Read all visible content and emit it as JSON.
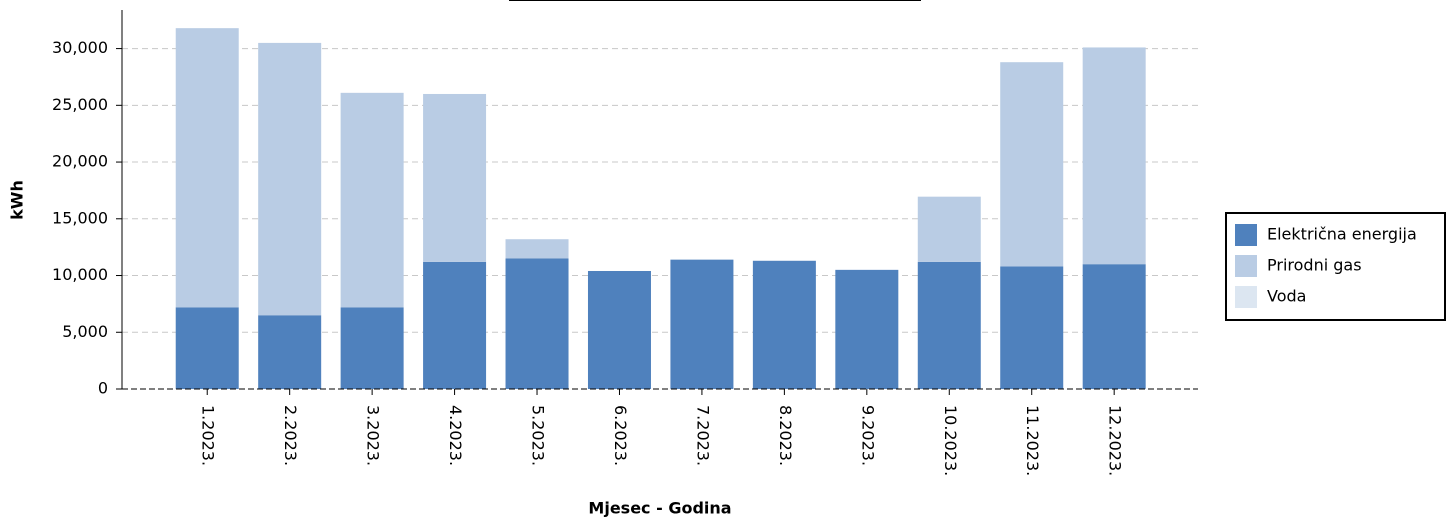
{
  "chart_data": {
    "type": "stacked_bar",
    "x_label": "Mjesec - Godina",
    "y_label": "kWh",
    "categories": [
      "1.2023.",
      "2.2023.",
      "3.2023.",
      "4.2023.",
      "5.2023.",
      "6.2023.",
      "7.2023.",
      "8.2023.",
      "9.2023.",
      "10.2023.",
      "11.2023.",
      "12.2023."
    ],
    "series": [
      {
        "name": "Električna energija",
        "color": "#4f81bd",
        "values": [
          7200,
          6500,
          7200,
          11200,
          11500,
          10400,
          11400,
          11300,
          10500,
          11200,
          10800,
          11000
        ]
      },
      {
        "name": "Prirodni gas",
        "color": "#b9cce4",
        "values": [
          24600,
          24000,
          18900,
          14800,
          1700,
          0,
          0,
          0,
          0,
          5750,
          18000,
          19100
        ]
      },
      {
        "name": "Voda",
        "color": "#dce6f1",
        "values": [
          0,
          0,
          0,
          0,
          0,
          0,
          0,
          0,
          0,
          0,
          0,
          0
        ]
      }
    ],
    "ylim": [
      0,
      33400
    ],
    "yticks": [
      0,
      {
        "value": 5000,
        "label": "5,000"
      },
      {
        "value": 10000,
        "label": "10,000"
      },
      {
        "value": 15000,
        "label": "15,000"
      },
      {
        "value": 20000,
        "label": "20,000"
      },
      {
        "value": 25000,
        "label": "25,000"
      },
      {
        "value": 30000,
        "label": "30,000"
      }
    ],
    "grid": true,
    "legend": "right"
  }
}
